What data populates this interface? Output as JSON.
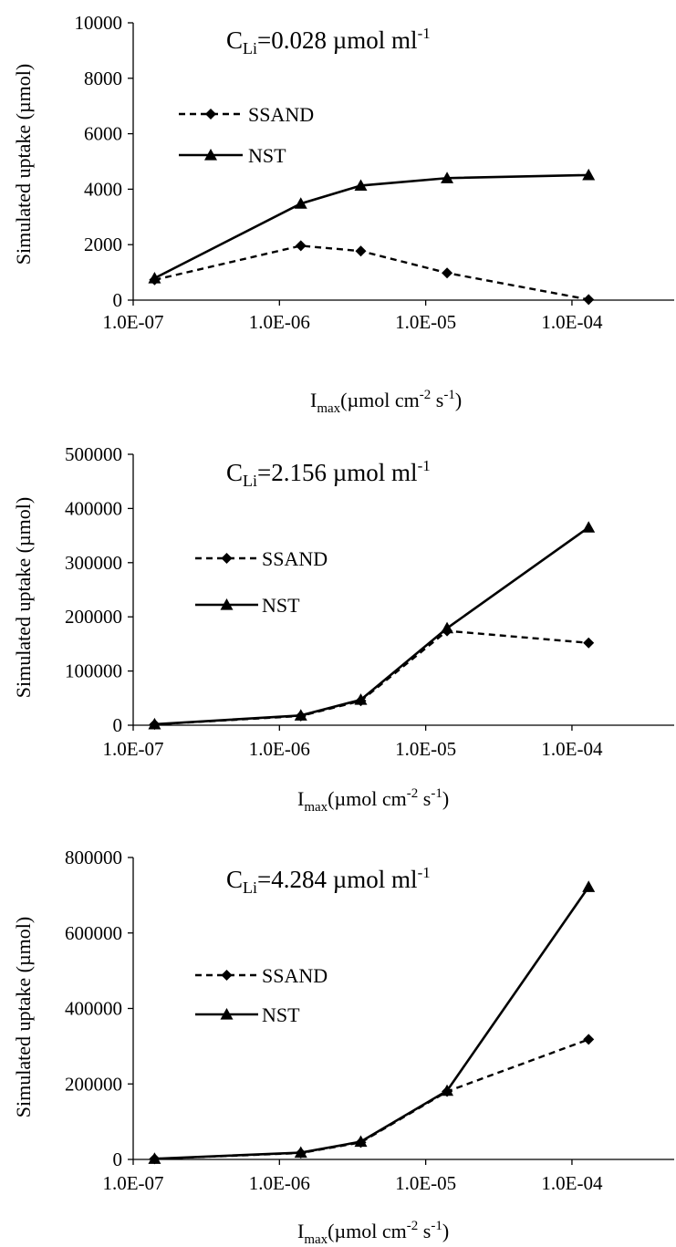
{
  "chart_data": [
    {
      "type": "line",
      "title_main": "C",
      "title_sub": "Li",
      "title_rest": "=0.028 µmol ml",
      "title_sup": "-1",
      "xlabel_main": "I",
      "xlabel_sub": "max",
      "xlabel_rest1": "(µmol cm",
      "xlabel_sup1": "-2",
      "xlabel_rest2": " s",
      "xlabel_sup2": "-1",
      "xlabel_rest3": ")",
      "ylabel": "Simulated uptake (µmol)",
      "x_scale": "log",
      "xlim": [
        1e-07,
        0.0005
      ],
      "x_ticks": [
        1e-07,
        1e-06,
        1e-05,
        0.0001
      ],
      "x_tick_labels": [
        "1.0E-07",
        "1.0E-06",
        "1.0E-05",
        "1.0E-04"
      ],
      "ylim": [
        0,
        10000
      ],
      "y_ticks": [
        0,
        2000,
        4000,
        6000,
        8000,
        10000
      ],
      "y_tick_labels": [
        "0",
        "2000",
        "4000",
        "6000",
        "8000",
        "10000"
      ],
      "legend_position": "left",
      "grid": false,
      "series": [
        {
          "name": "SSAND",
          "style": "dashed",
          "marker": "diamond",
          "color": "#000000",
          "x": [
            1.4e-07,
            1.4e-06,
            3.6e-06,
            1.4e-05,
            0.00013
          ],
          "y": [
            730,
            1960,
            1770,
            980,
            20
          ]
        },
        {
          "name": "NST",
          "style": "solid",
          "marker": "triangle",
          "color": "#000000",
          "x": [
            1.4e-07,
            1.4e-06,
            3.6e-06,
            1.4e-05,
            0.00013
          ],
          "y": [
            790,
            3480,
            4130,
            4400,
            4510
          ]
        }
      ]
    },
    {
      "type": "line",
      "title_main": "C",
      "title_sub": "Li",
      "title_rest": "=2.156 µmol ml",
      "title_sup": "-1",
      "xlabel_main": "I",
      "xlabel_sub": "max",
      "xlabel_rest1": "(µmol cm",
      "xlabel_sup1": "-2",
      "xlabel_rest2": " s",
      "xlabel_sup2": "-1",
      "xlabel_rest3": ")",
      "ylabel": "Simulated uptake (µmol)",
      "x_scale": "log",
      "xlim": [
        1e-07,
        0.0005
      ],
      "x_ticks": [
        1e-07,
        1e-06,
        1e-05,
        0.0001
      ],
      "x_tick_labels": [
        "1.0E-07",
        "1.0E-06",
        "1.0E-05",
        "1.0E-04"
      ],
      "ylim": [
        0,
        500000
      ],
      "y_ticks": [
        0,
        100000,
        200000,
        300000,
        400000,
        500000
      ],
      "y_tick_labels": [
        "0",
        "100000",
        "200000",
        "300000",
        "400000",
        "500000"
      ],
      "legend_position": "left",
      "grid": false,
      "series": [
        {
          "name": "SSAND",
          "style": "dashed",
          "marker": "diamond",
          "color": "#000000",
          "x": [
            1.4e-07,
            1.4e-06,
            3.6e-06,
            1.4e-05,
            0.00013
          ],
          "y": [
            1500,
            17000,
            45000,
            174000,
            152000
          ]
        },
        {
          "name": "NST",
          "style": "solid",
          "marker": "triangle",
          "color": "#000000",
          "x": [
            1.4e-07,
            1.4e-06,
            3.6e-06,
            1.4e-05,
            0.00013
          ],
          "y": [
            1800,
            18000,
            47000,
            179000,
            365000
          ]
        }
      ]
    },
    {
      "type": "line",
      "title_main": "C",
      "title_sub": "Li",
      "title_rest": "=4.284 µmol ml",
      "title_sup": "-1",
      "xlabel_main": "I",
      "xlabel_sub": "max",
      "xlabel_rest1": "(µmol cm",
      "xlabel_sup1": "-2",
      "xlabel_rest2": " s",
      "xlabel_sup2": "-1",
      "xlabel_rest3": ")",
      "ylabel": "Simulated uptake (µmol)",
      "x_scale": "log",
      "xlim": [
        1e-07,
        0.0005
      ],
      "x_ticks": [
        1e-07,
        1e-06,
        1e-05,
        0.0001
      ],
      "x_tick_labels": [
        "1.0E-07",
        "1.0E-06",
        "1.0E-05",
        "1.0E-04"
      ],
      "ylim": [
        0,
        800000
      ],
      "y_ticks": [
        0,
        200000,
        400000,
        600000,
        800000
      ],
      "y_tick_labels": [
        "0",
        "200000",
        "400000",
        "600000",
        "800000"
      ],
      "legend_position": "left",
      "grid": false,
      "series": [
        {
          "name": "SSAND",
          "style": "dashed",
          "marker": "diamond",
          "color": "#000000",
          "x": [
            1.4e-07,
            1.4e-06,
            3.6e-06,
            1.4e-05,
            0.00013
          ],
          "y": [
            1500,
            17000,
            45000,
            180000,
            318000
          ]
        },
        {
          "name": "NST",
          "style": "solid",
          "marker": "triangle",
          "color": "#000000",
          "x": [
            1.4e-07,
            1.4e-06,
            3.6e-06,
            1.4e-05,
            0.00013
          ],
          "y": [
            1800,
            18000,
            47000,
            182000,
            722000
          ]
        }
      ]
    }
  ]
}
